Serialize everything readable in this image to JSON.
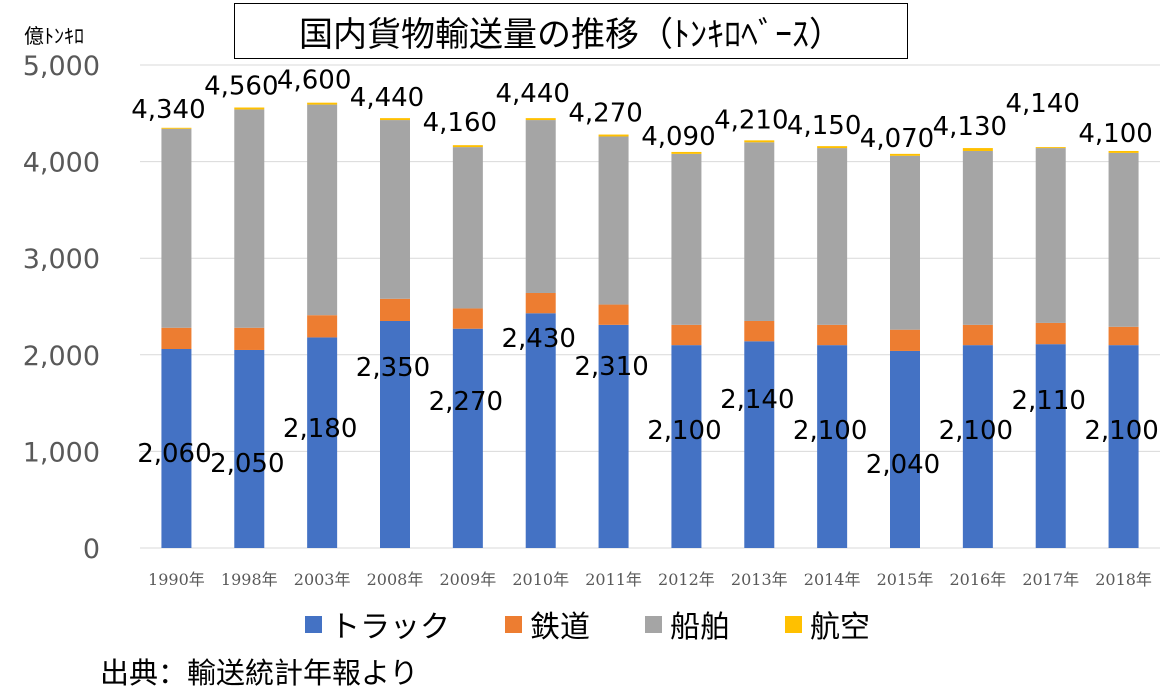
{
  "chart_data": {
    "type": "bar",
    "stacked": true,
    "title": "国内貨物輸送量の推移（ﾄﾝｷﾛﾍﾞｰｽ）",
    "unit_label": "億ﾄﾝｷﾛ",
    "source": "出典：輸送統計年報より",
    "categories": [
      "1990年",
      "1998年",
      "2003年",
      "2008年",
      "2009年",
      "2010年",
      "2011年",
      "2012年",
      "2013年",
      "2014年",
      "2015年",
      "2016年",
      "2017年",
      "2018年"
    ],
    "series": [
      {
        "name": "トラック",
        "color": "#4472C4",
        "values": [
          2060,
          2050,
          2180,
          2350,
          2270,
          2430,
          2310,
          2100,
          2140,
          2100,
          2040,
          2100,
          2110,
          2100
        ]
      },
      {
        "name": "鉄道",
        "color": "#ED7D31",
        "values": [
          220,
          230,
          230,
          230,
          210,
          210,
          210,
          210,
          210,
          210,
          220,
          210,
          220,
          190
        ]
      },
      {
        "name": "船舶",
        "color": "#A5A5A5",
        "values": [
          2060,
          2260,
          2180,
          1850,
          1670,
          1790,
          1740,
          1770,
          1850,
          1830,
          1800,
          1800,
          1810,
          1800
        ]
      },
      {
        "name": "航空",
        "color": "#FFC000",
        "values": [
          10,
          20,
          20,
          20,
          20,
          20,
          20,
          20,
          20,
          20,
          20,
          30,
          10,
          20
        ]
      }
    ],
    "totals": [
      "4,340",
      "4,560",
      "4,600",
      "4,440",
      "4,160",
      "4,440",
      "4,270",
      "4,090",
      "4,210",
      "4,150",
      "4,070",
      "4,130",
      "4,140",
      "4,100"
    ],
    "truck_labels": [
      "2,060",
      "2,050",
      "2,180",
      "2,350",
      "2,270",
      "2,430",
      "2,310",
      "2,100",
      "2,140",
      "2,100",
      "2,040",
      "2,100",
      "2,110",
      "2,100"
    ],
    "ylim": [
      0,
      5000
    ],
    "yticks": [
      0,
      1000,
      2000,
      3000,
      4000,
      5000
    ],
    "ytick_labels": [
      "0",
      "1,000",
      "2,000",
      "3,000",
      "4,000",
      "5,000"
    ],
    "grid": true,
    "legend_position": "bottom"
  }
}
